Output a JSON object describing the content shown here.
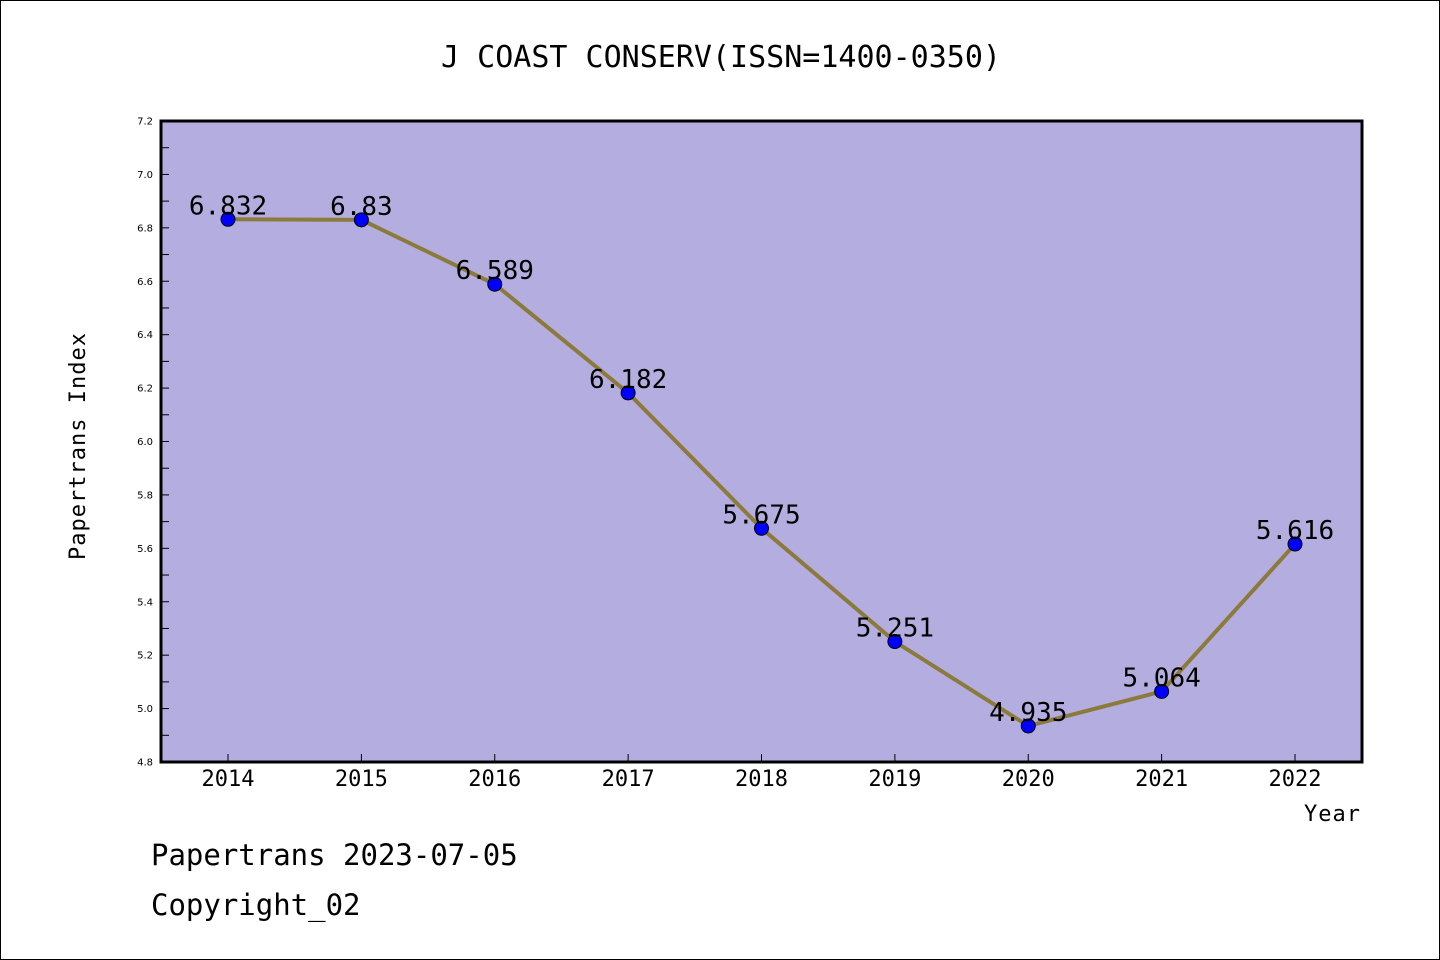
{
  "chart_data": {
    "type": "line",
    "title": "J COAST CONSERV(ISSN=1400-0350)",
    "xlabel": "Year",
    "ylabel": "Papertrans Index",
    "categories": [
      "2014",
      "2015",
      "2016",
      "2017",
      "2018",
      "2019",
      "2020",
      "2021",
      "2022"
    ],
    "series": [
      {
        "values": [
          6.832,
          6.83,
          6.589,
          6.182,
          5.675,
          5.251,
          4.935,
          5.064,
          5.616
        ],
        "labels": [
          "6.832",
          "6.83",
          "6.589",
          "6.182",
          "5.675",
          "5.251",
          "4.935",
          "5.064",
          "5.616"
        ]
      }
    ],
    "ylim": [
      4.8,
      7.2
    ],
    "yticks": [
      "4.8",
      "5.0",
      "5.2",
      "5.4",
      "5.6",
      "5.8",
      "6.0",
      "6.2",
      "6.4",
      "6.6",
      "6.8",
      "7.0",
      "7.2"
    ],
    "grid": false,
    "legend": "none"
  },
  "footer": {
    "line1": "Papertrans 2023-07-05",
    "line2": "Copyright_02"
  },
  "colors": {
    "plot_background": "#b4aee0",
    "line": "#8b7a3b",
    "marker": "#0000ff"
  }
}
